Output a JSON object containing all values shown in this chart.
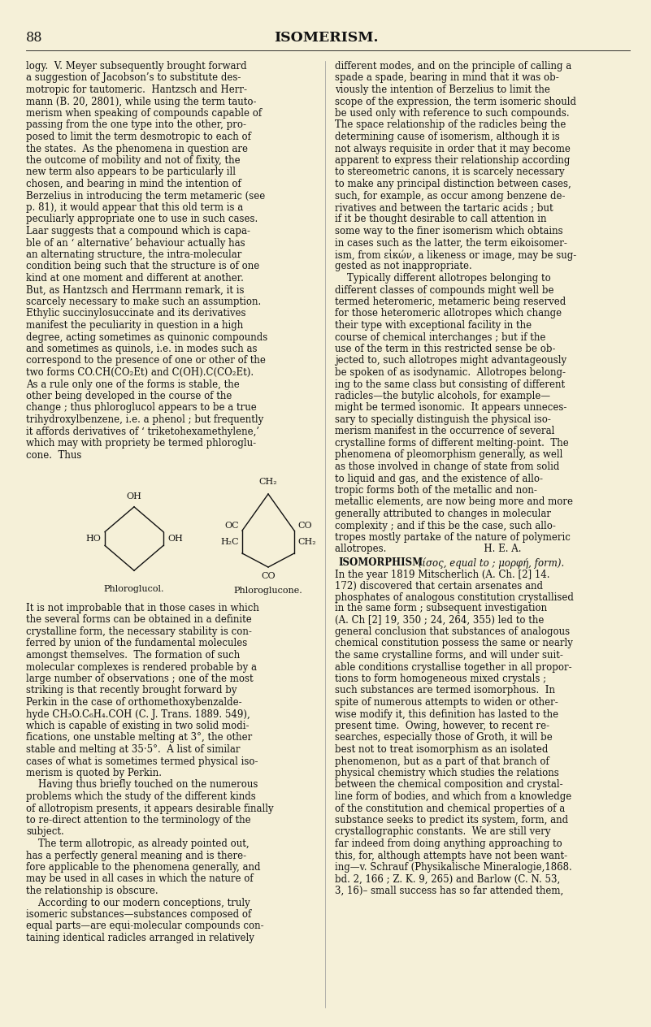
{
  "page_background": "#f5f0d8",
  "text_color": "#111111",
  "header_page_num": "88",
  "header_title": "ISOMERISM.",
  "left_column_text": [
    "logy.  V. Meyer subsequently brought forward",
    "a suggestion of Jacobson’s to substitute des-",
    "motropic for tautomeric.  Hantzsch and Herr-",
    "mann (B. 20, 2801), while using the term tauto-",
    "merism when speaking of compounds capable of",
    "passing from the one type into the other, pro-",
    "posed to limit the term desmotropic to each of",
    "the states.  As the phenomena in question are",
    "the outcome of mobility and not of fixity, the",
    "new term also appears to be particularly ill",
    "chosen, and bearing in mind the intention of",
    "Berzelius in introducing the term metameric (see",
    "p. 81), it would appear that this old term is a",
    "peculiarly appropriate one to use in such cases.",
    "Laar suggests that a compound which is capa-",
    "ble of an ‘ alternative’ behaviour actually has",
    "an alternating structure, the intra-molecular",
    "condition being such that the structure is of one",
    "kind at one moment and different at another.",
    "But, as Hantzsch and Herrmann remark, it is",
    "scarcely necessary to make such an assumption.",
    "Ethylic succinylosuccinate and its derivatives",
    "manifest the peculiarity in question in a high",
    "degree, acting sometimes as quinonic compounds",
    "and sometimes as quinols, i.e. in modes such as",
    "correspond to the presence of one or other of the",
    "two forms CO.CH(CO₂Et) and C(OH).C(CO₂Et).",
    "As a rule only one of the forms is stable, the",
    "other being developed in the course of the",
    "change ; thus phloroglucol appears to be a true",
    "trihydroxylbenzene, i.e. a phenol ; but frequently",
    "it affords derivatives of ‘ triketohexamethylene,’",
    "which may with propriety be termed phloroglu-",
    "cone.  Thus"
  ],
  "right_column_text": [
    "different modes, and on the principle of calling a",
    "spade a spade, bearing in mind that it was ob-",
    "viously the intention of Berzelius to limit the",
    "scope of the expression, the term isomeric should",
    "be used only with reference to such compounds.",
    "The space relationship of the radicles being the",
    "determining cause of isomerism, although it is",
    "not always requisite in order that it may become",
    "apparent to express their relationship according",
    "to stereometric canons, it is scarcely necessary",
    "to make any principal distinction between cases,",
    "such, for example, as occur among benzene de-",
    "rivatives and between the tartaric acids ; but",
    "if it be thought desirable to call attention in",
    "some way to the finer isomerism which obtains",
    "in cases such as the latter, the term eikoisomer-",
    "ism, from εἰκών, a likeness or image, may be sug-",
    "gested as not inappropriate.",
    "    Typically different allotropes belonging to",
    "different classes of compounds might well be",
    "termed heteromeric, metameric being reserved",
    "for those heteromeric allotropes which change",
    "their type with exceptional facility in the",
    "course of chemical interchanges ; but if the",
    "use of the term in this restricted sense be ob-",
    "jected to, such allotropes might advantageously",
    "be spoken of as isodynamic.  Allotropes belong-",
    "ing to the same class but consisting of different",
    "radicles—the butylic alcohols, for example—",
    "might be termed isonomic.  It appears unneces-",
    "sary to specially distinguish the physical iso-",
    "merism manifest in the occurrence of several",
    "crystalline forms of different melting-point.  The",
    "phenomena of pleomorphism generally, as well",
    "as those involved in change of state from solid",
    "to liquid and gas, and the existence of allo-",
    "tropic forms both of the metallic and non-",
    "metallic elements, are now being more and more",
    "generally attributed to changes in molecular",
    "complexity ; and if this be the case, such allo-",
    "tropes mostly partake of the nature of polymeric",
    "allotropes.                                H. E. A."
  ],
  "left_col_lower_text": [
    "It is not improbable that in those cases in which",
    "the several forms can be obtained in a definite",
    "crystalline form, the necessary stability is con-",
    "ferred by union of the fundamental molecules",
    "amongst themselves.  The formation of such",
    "molecular complexes is rendered probable by a",
    "large number of observations ; one of the most",
    "striking is that recently brought forward by",
    "Perkin in the case of orthomethoxybenzalde-",
    "hyde CH₃O.C₆H₄.COH (C. J. Trans. 1889. 549),",
    "which is capable of existing in two solid modi-",
    "fications, one unstable melting at 3°, the other",
    "stable and melting at 35·5°.  A list of similar",
    "cases of what is sometimes termed physical iso-",
    "merism is quoted by Perkin.",
    "    Having thus briefly touched on the numerous",
    "problems which the study of the different kinds",
    "of allotropism presents, it appears desirable finally",
    "to re-direct attention to the terminology of the",
    "subject.",
    "    The term allotropic, as already pointed out,",
    "has a perfectly general meaning and is there-",
    "fore applicable to the phenomena generally, and",
    "may be used in all cases in which the nature of",
    "the relationship is obscure.",
    "    According to our modern conceptions, truly",
    "isomeric substances—substances composed of",
    "equal parts—are equi-molecular compounds con-",
    "taining identical radicles arranged in relatively"
  ],
  "right_col_lower_text_before_iso": [
    "in the same form ; subsequent investigation",
    "(A. Ch [2] 19, 350 ; 24, 264, 355) led to the",
    "general conclusion that substances of analogous",
    "chemical constitution possess the same or nearly",
    "the same crystalline forms, and will under suit-",
    "able conditions crystallise together in all propor-",
    "tions to form homogeneous mixed crystals ;",
    "such substances are termed isomorphous.  In",
    "spite of numerous attempts to widen or other-",
    "wise modify it, this definition has lasted to the",
    "present time.  Owing, however, to recent re-",
    "searches, especially those of Groth, it will be",
    "best not to treat isomorphism as an isolated",
    "phenomenon, but as a part of that branch of",
    "physical chemistry which studies the relations",
    "between the chemical composition and crystal-",
    "line form of bodies, and which from a knowledge",
    "of the constitution and chemical properties of a",
    "substance seeks to predict its system, form, and",
    "crystallographic constants.  We are still very",
    "far indeed from doing anything approaching to",
    "this, for, although attempts have not been want-",
    "ing—v. Schrauf (Physikalische Mineralogie,1868.",
    "bd. 2, 166 ; Z. K. 9, 265) and Barlow (C. N. 53,",
    "3, 16)– small success has so far attended them,"
  ]
}
